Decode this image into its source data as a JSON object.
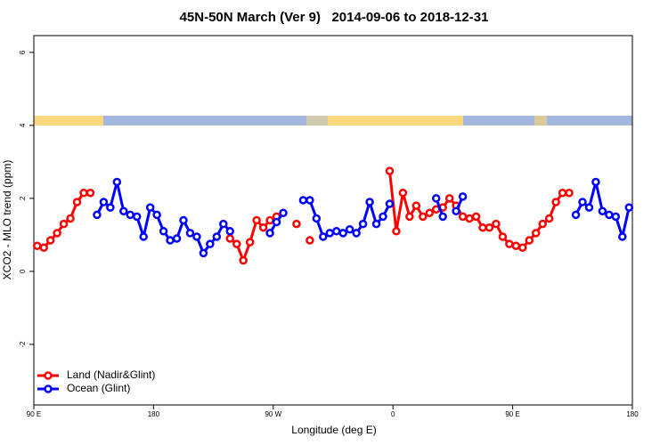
{
  "chart_data": {
    "type": "line",
    "title": "45N-50N March (Ver 9)   2014-09-06 to 2018-12-31",
    "x_label": "Longitude (deg E)",
    "y_label": "XCO2 - MLO trend (ppm)",
    "x": [
      92.5,
      97.5,
      102.5,
      107.5,
      112.5,
      117.5,
      122.5,
      127.5,
      132.5,
      137.5,
      142.5,
      147.5,
      152.5,
      157.5,
      162.5,
      167.5,
      172.5,
      177.5,
      182.5,
      187.5,
      192.5,
      197.5,
      202.5,
      207.5,
      212.5,
      217.5,
      222.5,
      227.5,
      232.5,
      237.5,
      242.5,
      247.5,
      252.5,
      257.5,
      262.5,
      267.5,
      272.5,
      277.5,
      282.5,
      287.5,
      292.5,
      297.5,
      302.5,
      307.5,
      312.5,
      317.5,
      322.5,
      327.5,
      332.5,
      337.5,
      342.5,
      347.5,
      352.5,
      357.5,
      362.5,
      367.5,
      372.5,
      377.5,
      382.5,
      387.5,
      392.5,
      397.5,
      402.5,
      407.5,
      412.5,
      417.5,
      422.5,
      427.5,
      432.5,
      437.5,
      442.5,
      447.5,
      452.5,
      457.5,
      462.5,
      467.5,
      472.5,
      477.5,
      482.5,
      487.5,
      492.5,
      497.5,
      502.5,
      507.5,
      512.5,
      517.5,
      522.5,
      527.5,
      532.5,
      537.5
    ],
    "series": [
      {
        "name": "Land (Nadir&Glint)",
        "color": "#ff0000",
        "values": [
          0.7,
          0.65,
          0.85,
          1.05,
          1.3,
          1.45,
          1.9,
          2.15,
          2.15,
          null,
          null,
          null,
          null,
          null,
          null,
          null,
          null,
          null,
          null,
          null,
          null,
          null,
          null,
          null,
          null,
          null,
          null,
          null,
          null,
          0.9,
          0.75,
          0.3,
          0.8,
          1.4,
          1.2,
          1.4,
          1.5,
          null,
          null,
          1.3,
          null,
          0.85,
          null,
          null,
          null,
          null,
          null,
          null,
          null,
          null,
          null,
          null,
          null,
          2.75,
          1.1,
          2.15,
          1.5,
          1.8,
          1.5,
          1.6,
          1.7,
          1.75,
          2.0,
          1.8,
          1.5,
          1.45,
          1.5,
          1.2,
          1.2,
          1.3,
          0.95,
          0.75,
          0.7,
          0.65,
          0.85,
          1.05,
          1.3,
          1.45,
          1.9,
          2.15,
          2.15,
          null,
          null,
          null,
          null,
          null,
          null,
          null,
          null,
          null
        ]
      },
      {
        "name": "Ocean (Glint)",
        "color": "#0000ff",
        "values": [
          null,
          null,
          null,
          null,
          null,
          null,
          null,
          null,
          null,
          1.55,
          1.9,
          1.75,
          2.45,
          1.65,
          1.55,
          1.5,
          0.95,
          1.75,
          1.55,
          1.1,
          0.85,
          0.9,
          1.4,
          1.05,
          0.95,
          0.5,
          0.75,
          0.95,
          1.3,
          1.1,
          null,
          null,
          null,
          null,
          null,
          1.05,
          1.35,
          1.6,
          null,
          null,
          1.95,
          1.95,
          1.45,
          0.95,
          1.05,
          1.1,
          1.05,
          1.15,
          1.05,
          1.3,
          1.9,
          1.3,
          1.5,
          1.85,
          null,
          null,
          null,
          null,
          null,
          null,
          2.0,
          1.5,
          null,
          1.65,
          2.05,
          null,
          null,
          null,
          null,
          null,
          null,
          null,
          null,
          null,
          null,
          null,
          null,
          null,
          null,
          null,
          null,
          1.55,
          1.9,
          1.75,
          2.45,
          1.65,
          1.55,
          1.5,
          0.95,
          1.75
        ]
      }
    ],
    "xlim": [
      90,
      540
    ],
    "xticks": [
      {
        "value": 90,
        "label": "90 E"
      },
      {
        "value": 180,
        "label": "180"
      },
      {
        "value": 270,
        "label": "90 W"
      },
      {
        "value": 360,
        "label": "0"
      },
      {
        "value": 450,
        "label": "90 E"
      },
      {
        "value": 540,
        "label": "180"
      }
    ],
    "ylim": [
      -3.66,
      6.46
    ],
    "yticks": [
      -2,
      0,
      2,
      4,
      6
    ],
    "legend": "bottom-left",
    "grid": false
  }
}
